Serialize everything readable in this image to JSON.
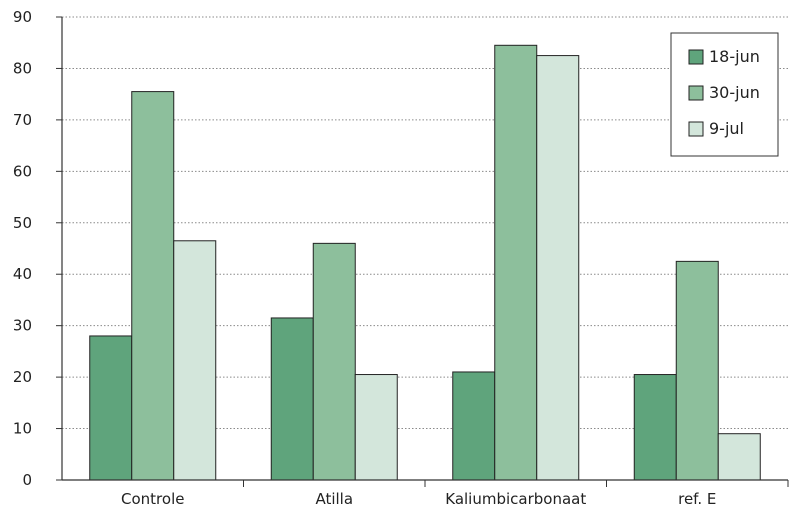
{
  "chart_data": {
    "type": "bar",
    "categories": [
      "Controle",
      "Atilla",
      "Kaliumbicarbonaat",
      "ref. E"
    ],
    "series": [
      {
        "name": "18-jun",
        "values": [
          28,
          31.5,
          21,
          20.5
        ],
        "color": "#5fa47c"
      },
      {
        "name": "30-jun",
        "values": [
          75.5,
          46,
          84.5,
          42.5
        ],
        "color": "#8dbf9c"
      },
      {
        "name": "9-jul",
        "values": [
          46.5,
          20.5,
          82.5,
          9
        ],
        "color": "#d3e6db"
      }
    ],
    "ylim": [
      0,
      90
    ],
    "yticks": [
      0,
      10,
      20,
      30,
      40,
      50,
      60,
      70,
      80,
      90
    ],
    "grid": true,
    "legend_position": "top-right"
  }
}
